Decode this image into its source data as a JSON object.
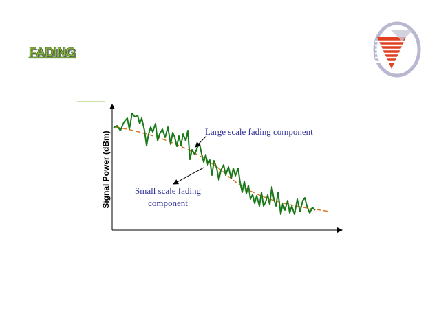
{
  "title": "FADING",
  "diagram": {
    "y_axis_label": "Signal Power (dBm)",
    "annotations": [
      {
        "text": "Large scale fading component"
      },
      {
        "lines": [
          "Small scale fading",
          "component"
        ]
      }
    ]
  }
}
